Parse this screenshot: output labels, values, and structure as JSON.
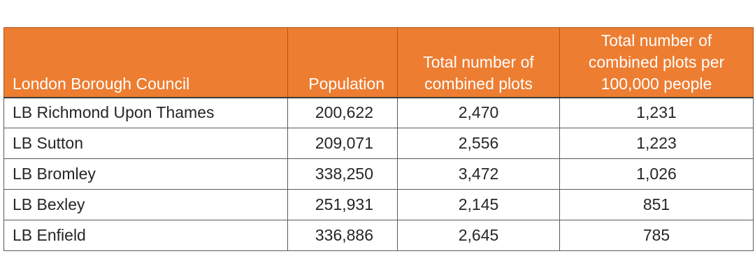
{
  "table": {
    "headers": [
      "London Borough Council",
      "Population",
      "Total number of combined plots",
      "Total number of combined plots per 100,000 people"
    ],
    "rows": [
      [
        "LB Richmond Upon Thames",
        "200,622",
        "2,470",
        "1,231"
      ],
      [
        "LB Sutton",
        "209,071",
        "2,556",
        "1,223"
      ],
      [
        "LB Bromley",
        "338,250",
        "3,472",
        "1,026"
      ],
      [
        "LB Bexley",
        "251,931",
        "2,145",
        "851"
      ],
      [
        "LB Enfield",
        "336,886",
        "2,645",
        "785"
      ]
    ]
  },
  "colors": {
    "header_background": "#ED7D31",
    "header_text": "#FFFFFF",
    "body_text": "#262626"
  }
}
